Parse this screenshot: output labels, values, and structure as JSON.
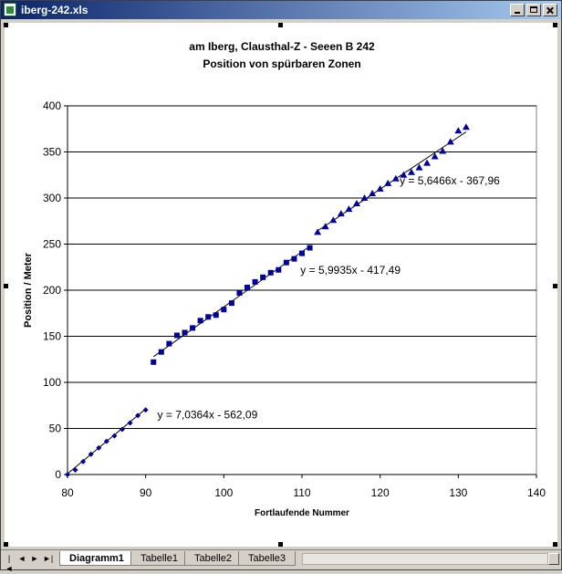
{
  "window": {
    "title": "iberg-242.xls"
  },
  "sheet_tabs": [
    "Diagramm1",
    "Tabelle1",
    "Tabelle2",
    "Tabelle3"
  ],
  "nav_buttons": [
    "|◄",
    "◄",
    "►",
    "►|"
  ],
  "colors": {
    "series": "#000099",
    "trend": "#000000",
    "gridline": "#000000",
    "titlebar": "#0a246a"
  },
  "chart_data": {
    "type": "scatter",
    "title": "am Iberg, Clausthal-Z - Seeen B 242",
    "subtitle": "Position von spürbaren Zonen",
    "xlabel": "Fortlaufende Nummer",
    "ylabel": "Position / Meter",
    "xlim": [
      80,
      140
    ],
    "ylim": [
      0,
      400
    ],
    "xticks": [
      80,
      90,
      100,
      110,
      120,
      130,
      140
    ],
    "yticks": [
      0,
      50,
      100,
      150,
      200,
      250,
      300,
      350,
      400
    ],
    "grid": "horizontal",
    "series": [
      {
        "marker": "diamond",
        "x": [
          80,
          81,
          82,
          83,
          84,
          85,
          86,
          87,
          88,
          89,
          90
        ],
        "y": [
          0,
          5,
          14,
          22,
          29,
          36,
          42,
          49,
          56,
          64,
          70
        ]
      },
      {
        "marker": "square",
        "x": [
          91,
          92,
          93,
          94,
          95,
          96,
          97,
          98,
          99,
          100,
          101,
          102,
          103,
          104,
          105,
          106,
          107,
          108,
          109,
          110,
          111
        ],
        "y": [
          122,
          133,
          142,
          151,
          154,
          159,
          167,
          171,
          173,
          179,
          186,
          197,
          203,
          209,
          214,
          219,
          222,
          230,
          234,
          240,
          246
        ]
      },
      {
        "marker": "triangle",
        "x": [
          112,
          113,
          114,
          115,
          116,
          117,
          118,
          119,
          120,
          121,
          122,
          123,
          124,
          125,
          126,
          127,
          128,
          129,
          130,
          131
        ],
        "y": [
          263,
          269,
          276,
          283,
          288,
          294,
          300,
          305,
          310,
          316,
          321,
          325,
          328,
          333,
          338,
          345,
          351,
          361,
          373,
          377
        ]
      }
    ],
    "trendlines": [
      {
        "label": "y = 7,0364x - 562,09",
        "slope": 7.0364,
        "intercept": -562.09,
        "x_range": [
          80,
          90
        ],
        "label_pos": [
          91.5,
          61
        ]
      },
      {
        "label": "y = 5,9935x - 417,49",
        "slope": 5.9935,
        "intercept": -417.49,
        "x_range": [
          91,
          111
        ],
        "label_pos": [
          109.8,
          218
        ]
      },
      {
        "label": "y = 5,6466x - 367,96",
        "slope": 5.6466,
        "intercept": -367.96,
        "x_range": [
          112,
          131
        ],
        "label_pos": [
          122.5,
          315
        ]
      }
    ]
  }
}
